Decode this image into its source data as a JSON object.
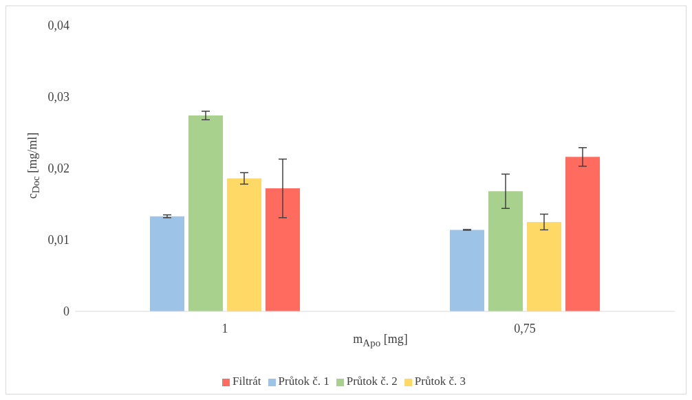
{
  "chart_data": {
    "type": "bar",
    "xlabel": "m$_{Apo}$ [mg]",
    "ylabel": "c$_{Doc}$ [mg/ml]",
    "categories": [
      "1",
      "0,75"
    ],
    "series": [
      {
        "name": "Průtok č. 1",
        "color": "#9dc3e6",
        "values": [
          0.0133,
          0.0114
        ],
        "errors": [
          0.0002,
          5e-05
        ]
      },
      {
        "name": "Průtok č. 2",
        "color": "#a9d18e",
        "values": [
          0.0274,
          0.0168
        ],
        "errors": [
          0.0006,
          0.0024
        ]
      },
      {
        "name": "Průtok č. 3",
        "color": "#ffd966",
        "values": [
          0.0186,
          0.0125
        ],
        "errors": [
          0.0008,
          0.0011
        ]
      },
      {
        "name": "Filtrát",
        "color": "#ff6b5e",
        "values": [
          0.0172,
          0.0216
        ],
        "errors": [
          0.0041,
          0.0013
        ]
      }
    ],
    "ylim": [
      0,
      0.04
    ],
    "yticks": [
      {
        "value": 0,
        "label": "0"
      },
      {
        "value": 0.01,
        "label": "0,01"
      },
      {
        "value": 0.02,
        "label": "0,02"
      },
      {
        "value": 0.03,
        "label": "0,03"
      },
      {
        "value": 0.04,
        "label": "0,04"
      }
    ],
    "grid": false,
    "legend": "bottom"
  }
}
